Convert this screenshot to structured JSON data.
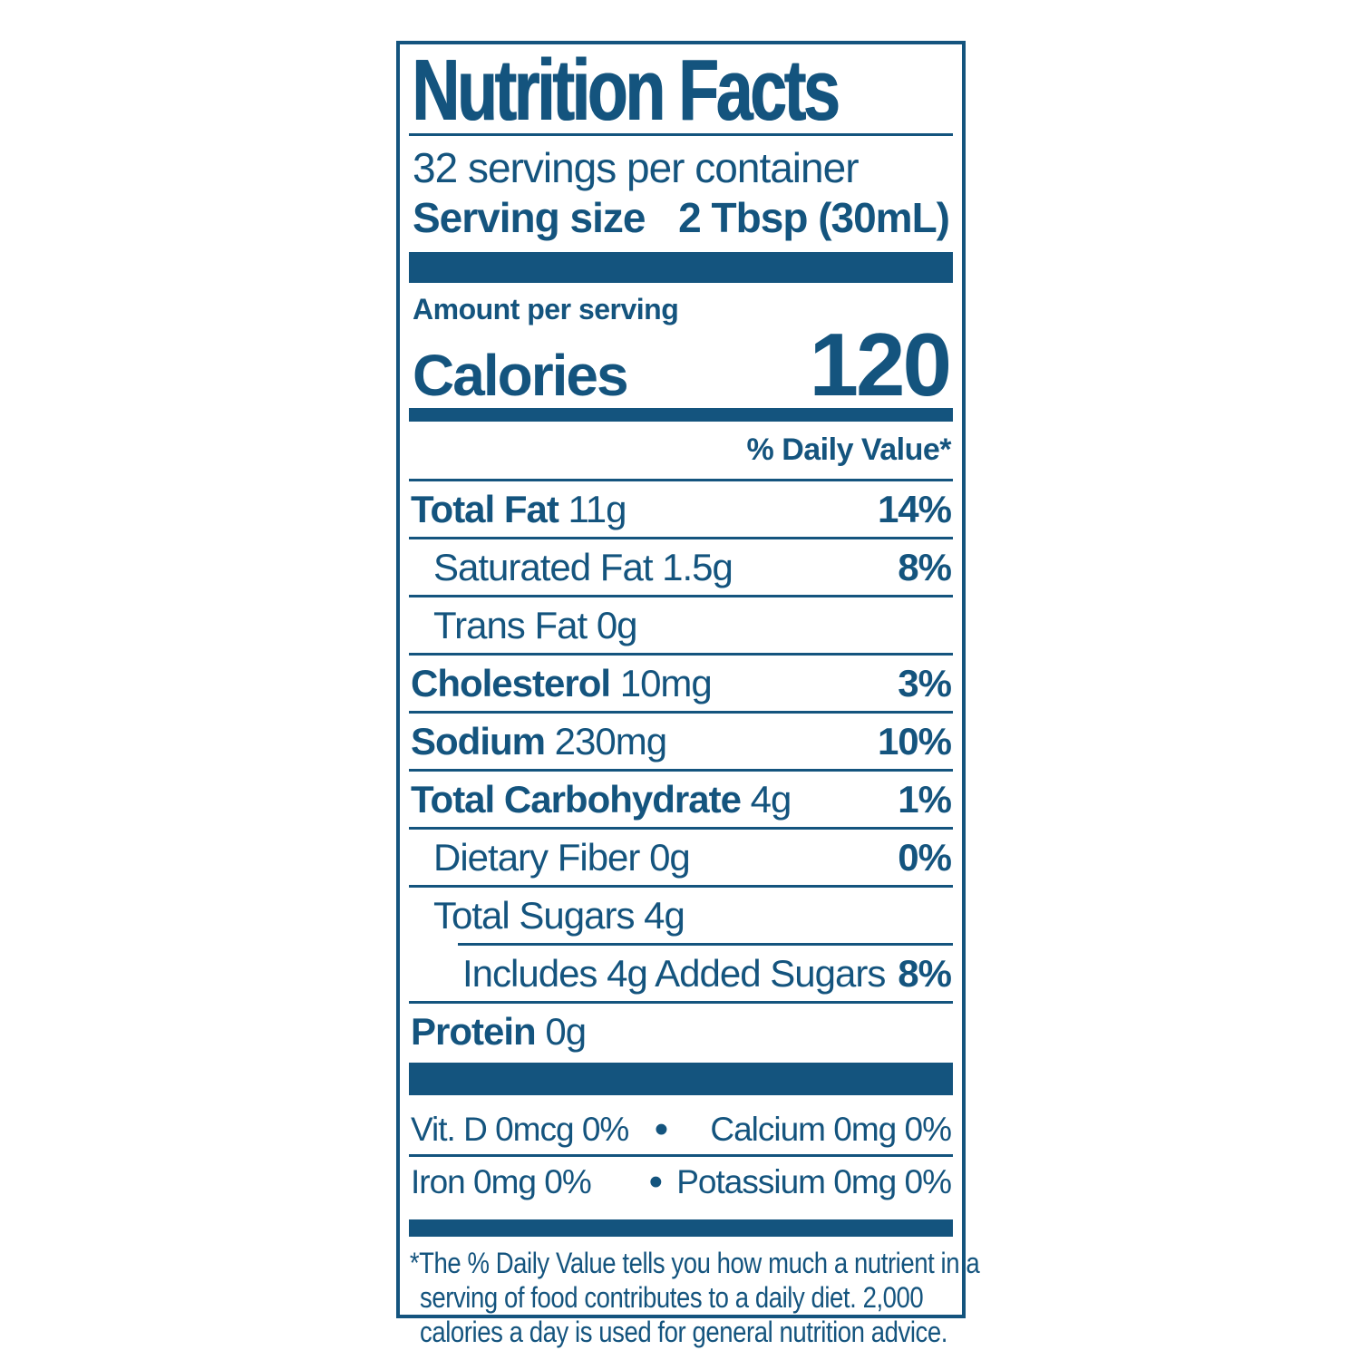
{
  "colors": {
    "brand_blue": "#14547E",
    "background": "#FFFFFF"
  },
  "label": {
    "title": "Nutrition Facts",
    "servings_per_container": "32 servings per container",
    "serving_size": {
      "label": "Serving size",
      "value": "2 Tbsp (30mL)"
    },
    "calories": {
      "context": "Amount per serving",
      "label": "Calories",
      "value": "120"
    },
    "daily_value_header": "% Daily Value*",
    "nutrients": [
      {
        "name": "Total Fat",
        "amount": "11g",
        "dv": "14%",
        "bold": true,
        "indent": 0
      },
      {
        "name": "Saturated Fat",
        "amount": "1.5g",
        "dv": "8%",
        "bold": false,
        "indent": 1
      },
      {
        "name": "Trans Fat",
        "amount": "0g",
        "dv": "",
        "bold": false,
        "indent": 1
      },
      {
        "name": "Cholesterol",
        "amount": "10mg",
        "dv": "3%",
        "bold": true,
        "indent": 0
      },
      {
        "name": "Sodium",
        "amount": "230mg",
        "dv": "10%",
        "bold": true,
        "indent": 0
      },
      {
        "name": "Total Carbohydrate",
        "amount": "4g",
        "dv": "1%",
        "bold": true,
        "indent": 0
      },
      {
        "name": "Dietary Fiber",
        "amount": "0g",
        "dv": "0%",
        "bold": false,
        "indent": 1
      },
      {
        "name": "Total Sugars",
        "amount": "4g",
        "dv": "",
        "bold": false,
        "indent": 1
      },
      {
        "name": "Includes 4g Added Sugars",
        "amount": "",
        "dv": "8%",
        "bold": false,
        "indent": 2,
        "divider_indent": true
      },
      {
        "name": "Protein",
        "amount": "0g",
        "dv": "",
        "bold": true,
        "indent": 0
      }
    ],
    "bullet": "•",
    "micronutrients": [
      {
        "left": "Vit. D 0mcg 0%",
        "right": "Calcium 0mg 0%"
      },
      {
        "left": "Iron 0mg 0%",
        "right": "Potassium 0mg 0%"
      }
    ],
    "footnote_lines": [
      "*The % Daily Value tells you how much a nutrient in a",
      "serving of food contributes to a daily diet. 2,000",
      "calories a day is used for general nutrition advice."
    ]
  }
}
